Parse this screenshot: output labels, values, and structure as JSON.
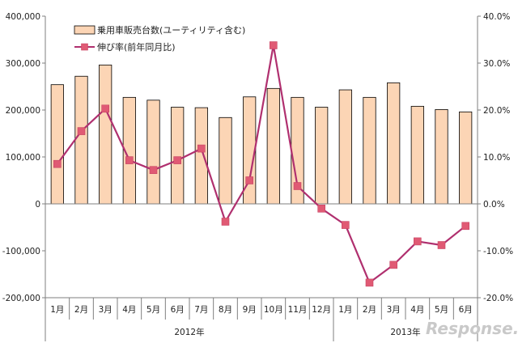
{
  "chart_data": {
    "type": "bar",
    "categories": [
      "1月",
      "2月",
      "3月",
      "4月",
      "5月",
      "6月",
      "7月",
      "8月",
      "9月",
      "10月",
      "11月",
      "12月",
      "1月",
      "2月",
      "3月",
      "4月",
      "5月",
      "6月"
    ],
    "groups": [
      {
        "label": "2012年",
        "from": 0,
        "to": 11
      },
      {
        "label": "2013年",
        "from": 12,
        "to": 17
      }
    ],
    "series": [
      {
        "name": "乗用車販売台数(ユーティリティ含む)",
        "type": "bar",
        "axis": "left",
        "color": "#fcd5b5",
        "values": [
          254000,
          272000,
          296000,
          227000,
          221000,
          206000,
          205000,
          184000,
          228000,
          246000,
          227000,
          206000,
          243000,
          227000,
          258000,
          208000,
          201000,
          196000
        ]
      },
      {
        "name": "伸び率(前年同月比)",
        "type": "line",
        "axis": "right",
        "color": "#b0306f",
        "marker_color": "#e05a74",
        "values": [
          8.5,
          15.5,
          20.3,
          9.3,
          7.2,
          9.3,
          11.8,
          -3.8,
          5.0,
          33.8,
          3.8,
          -1.0,
          -4.5,
          -16.8,
          -13.0,
          -8.0,
          -8.8,
          -4.7
        ]
      }
    ],
    "left_axis": {
      "min": -200000,
      "max": 400000,
      "ticks": [
        "400,000",
        "300,000",
        "200,000",
        "100,000",
        "0",
        "-100,000",
        "-200,000"
      ]
    },
    "right_axis": {
      "min": -20,
      "max": 40,
      "ticks": [
        "40.0%",
        "30.0%",
        "20.0%",
        "10.0%",
        "0.0%",
        "-10.0%",
        "-20.0%"
      ]
    },
    "grid": false,
    "legend_position": "top-left",
    "watermark": "Response."
  }
}
